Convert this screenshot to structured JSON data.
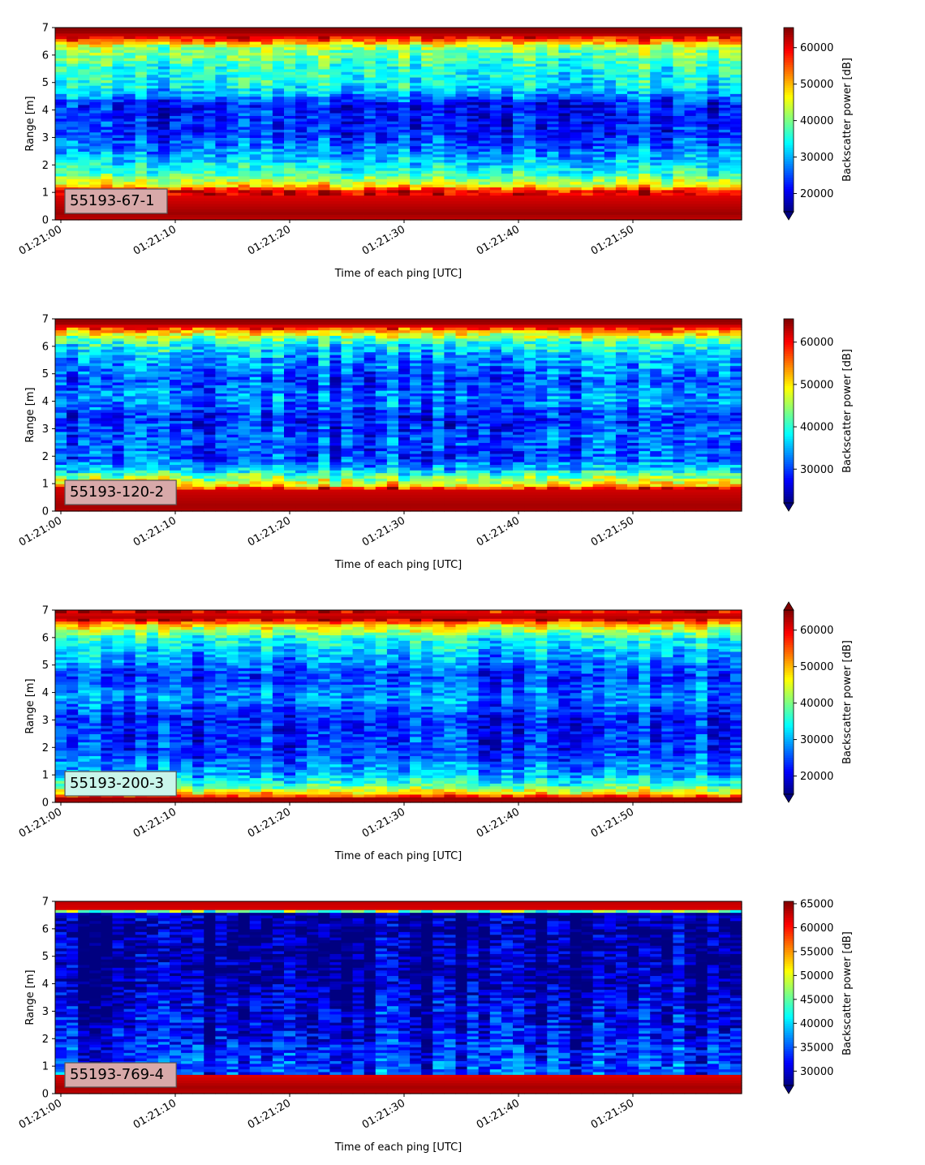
{
  "chart_data": [
    {
      "type": "heatmap",
      "station_label": "55193-67-1",
      "label_box_color": "#d8a9a9",
      "xlabel": "Time of each ping [UTC]",
      "ylabel": "Range [m]",
      "ylim": [
        0,
        7
      ],
      "y_ticks": [
        "0",
        "1",
        "2",
        "3",
        "4",
        "5",
        "6",
        "7"
      ],
      "x_ticks": [
        "01:21:00",
        "01:21:10",
        "01:21:20",
        "01:21:30",
        "01:21:40",
        "01:21:50"
      ],
      "colorbar_label": "Backscatter power [dB]",
      "colorbar_range": [
        15000,
        65500
      ],
      "colorbar_ticks": [
        "20000",
        "30000",
        "40000",
        "50000",
        "60000"
      ],
      "colorbar_extend": "min",
      "colormap": "jet",
      "profile": [
        {
          "range": 0.0,
          "value": 62000
        },
        {
          "range": 0.25,
          "value": 64000
        },
        {
          "range": 1.05,
          "value": 60000
        },
        {
          "range": 1.25,
          "value": 48000
        },
        {
          "range": 1.6,
          "value": 38000
        },
        {
          "range": 2.3,
          "value": 30000
        },
        {
          "range": 3.2,
          "value": 23000
        },
        {
          "range": 4.2,
          "value": 22000
        },
        {
          "range": 4.8,
          "value": 33000
        },
        {
          "range": 5.6,
          "value": 36000
        },
        {
          "range": 6.3,
          "value": 42000
        },
        {
          "range": 6.55,
          "value": 55000
        },
        {
          "range": 6.8,
          "value": 64000
        },
        {
          "range": 7.0,
          "value": 65000
        }
      ]
    },
    {
      "type": "heatmap",
      "station_label": "55193-120-2",
      "label_box_color": "#d8a9a9",
      "xlabel": "Time of each ping [UTC]",
      "ylabel": "Range [m]",
      "ylim": [
        0,
        7
      ],
      "y_ticks": [
        "0",
        "1",
        "2",
        "3",
        "4",
        "5",
        "6",
        "7"
      ],
      "x_ticks": [
        "01:21:00",
        "01:21:10",
        "01:21:20",
        "01:21:30",
        "01:21:40",
        "01:21:50"
      ],
      "colorbar_label": "Backscatter power [dB]",
      "colorbar_range": [
        22000,
        65500
      ],
      "colorbar_ticks": [
        "30000",
        "40000",
        "50000",
        "60000"
      ],
      "colorbar_extend": "min",
      "colormap": "jet",
      "profile": [
        {
          "range": 0.0,
          "value": 63000
        },
        {
          "range": 0.2,
          "value": 64000
        },
        {
          "range": 0.8,
          "value": 62000
        },
        {
          "range": 0.95,
          "value": 50000
        },
        {
          "range": 1.3,
          "value": 42000
        },
        {
          "range": 1.5,
          "value": 36000
        },
        {
          "range": 1.9,
          "value": 30000
        },
        {
          "range": 2.6,
          "value": 31000
        },
        {
          "range": 3.4,
          "value": 28000
        },
        {
          "range": 4.1,
          "value": 33000
        },
        {
          "range": 4.8,
          "value": 30000
        },
        {
          "range": 5.6,
          "value": 34000
        },
        {
          "range": 6.2,
          "value": 40000
        },
        {
          "range": 6.55,
          "value": 52000
        },
        {
          "range": 6.8,
          "value": 64000
        },
        {
          "range": 7.0,
          "value": 65000
        }
      ]
    },
    {
      "type": "heatmap",
      "station_label": "55193-200-3",
      "label_box_color": "#c9f5ea",
      "xlabel": "Time of each ping [UTC]",
      "ylabel": "Range [m]",
      "ylim": [
        0,
        7
      ],
      "y_ticks": [
        "0",
        "1",
        "2",
        "3",
        "4",
        "5",
        "6",
        "7"
      ],
      "x_ticks": [
        "01:21:00",
        "01:21:10",
        "01:21:20",
        "01:21:30",
        "01:21:40",
        "01:21:50"
      ],
      "colorbar_label": "Backscatter power [dB]",
      "colorbar_range": [
        15000,
        65500
      ],
      "colorbar_ticks": [
        "20000",
        "30000",
        "40000",
        "50000",
        "60000"
      ],
      "colorbar_extend": "both",
      "colormap": "jet",
      "profile": [
        {
          "range": 0.0,
          "value": 63000
        },
        {
          "range": 0.15,
          "value": 64000
        },
        {
          "range": 0.3,
          "value": 50000
        },
        {
          "range": 0.6,
          "value": 38000
        },
        {
          "range": 1.0,
          "value": 30000
        },
        {
          "range": 1.8,
          "value": 24000
        },
        {
          "range": 3.0,
          "value": 22000
        },
        {
          "range": 3.8,
          "value": 28000
        },
        {
          "range": 4.6,
          "value": 24000
        },
        {
          "range": 5.4,
          "value": 30000
        },
        {
          "range": 6.0,
          "value": 35000
        },
        {
          "range": 6.45,
          "value": 48000
        },
        {
          "range": 6.7,
          "value": 63000
        },
        {
          "range": 7.0,
          "value": 60000
        }
      ]
    },
    {
      "type": "heatmap",
      "station_label": "55193-769-4",
      "label_box_color": "#d8a9a9",
      "xlabel": "Time of each ping [UTC]",
      "ylabel": "Range [m]",
      "ylim": [
        0,
        7
      ],
      "y_ticks": [
        "0",
        "1",
        "2",
        "3",
        "4",
        "5",
        "6",
        "7"
      ],
      "x_ticks": [
        "01:21:00",
        "01:21:10",
        "01:21:20",
        "01:21:30",
        "01:21:40",
        "01:21:50"
      ],
      "colorbar_label": "Backscatter power [dB]",
      "colorbar_range": [
        27000,
        65500
      ],
      "colorbar_ticks": [
        "30000",
        "35000",
        "40000",
        "45000",
        "50000",
        "55000",
        "60000",
        "65000"
      ],
      "colorbar_extend": "min",
      "colormap": "jet",
      "profile": [
        {
          "range": 0.0,
          "value": 63000
        },
        {
          "range": 0.25,
          "value": 64000
        },
        {
          "range": 0.65,
          "value": 62000
        },
        {
          "range": 0.75,
          "value": 34000
        },
        {
          "range": 1.4,
          "value": 33000
        },
        {
          "range": 2.2,
          "value": 31000
        },
        {
          "range": 3.2,
          "value": 30000
        },
        {
          "range": 4.0,
          "value": 28000
        },
        {
          "range": 6.6,
          "value": 27500
        },
        {
          "range": 6.7,
          "value": 62000
        },
        {
          "range": 7.0,
          "value": 63000
        }
      ]
    }
  ]
}
